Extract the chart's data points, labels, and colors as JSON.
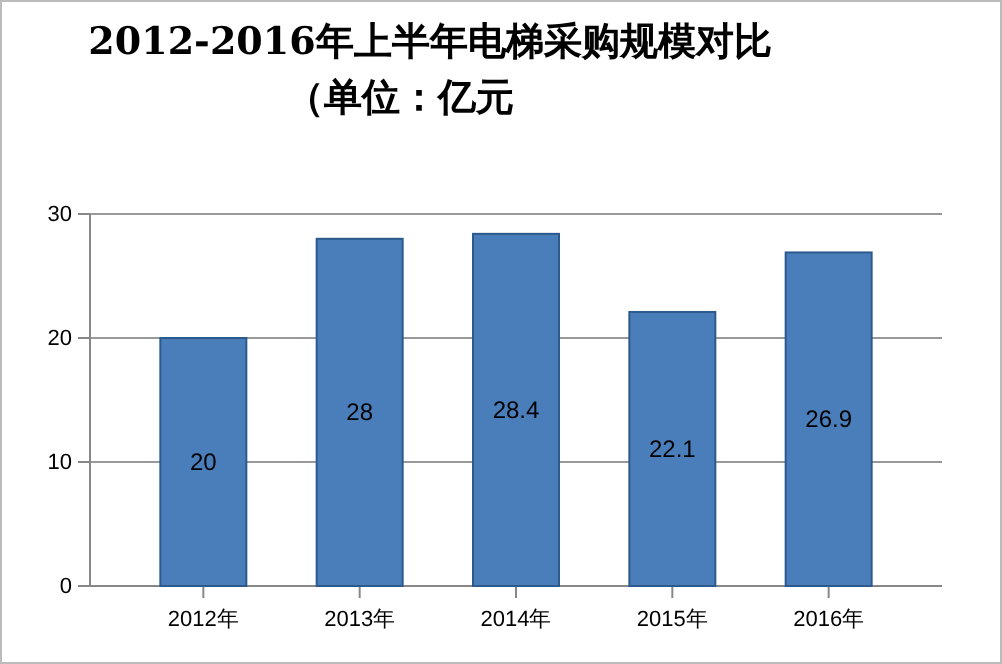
{
  "chart_data": {
    "type": "bar",
    "title": "2012-2016年上半年电梯采购规模对比",
    "subtitle": "（单位：亿元",
    "categories": [
      "2012年",
      "2013年",
      "2014年",
      "2015年",
      "2016年"
    ],
    "values": [
      20,
      28,
      28.4,
      22.1,
      26.9
    ],
    "color": "#4a7ebb",
    "ylim": [
      0,
      30
    ],
    "yticks": [
      0,
      10,
      20,
      30
    ],
    "grid": "y",
    "data_labels": true
  }
}
